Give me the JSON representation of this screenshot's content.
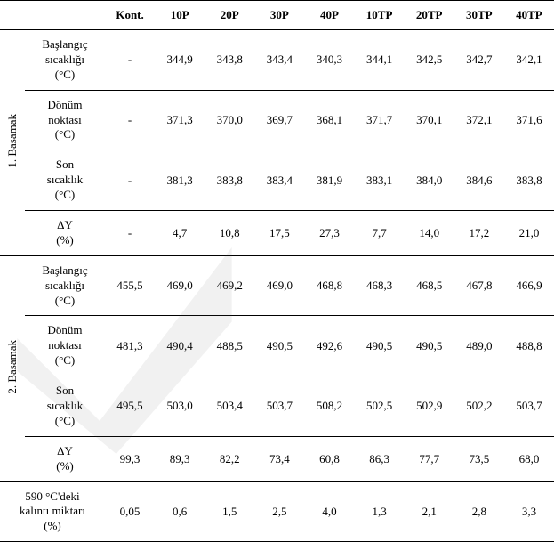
{
  "columns": [
    "Kont.",
    "10P",
    "20P",
    "30P",
    "40P",
    "10TP",
    "20TP",
    "30TP",
    "40TP"
  ],
  "groups": [
    {
      "label": "1.   Basamak",
      "rows": [
        {
          "label": "Başlangıç\nsıcaklığı\n(°C)",
          "values": [
            "-",
            "344,9",
            "343,8",
            "343,4",
            "340,3",
            "344,1",
            "342,5",
            "342,7",
            "342,1"
          ]
        },
        {
          "label": "Dönüm\nnoktası\n(°C)",
          "values": [
            "-",
            "371,3",
            "370,0",
            "369,7",
            "368,1",
            "371,7",
            "370,1",
            "372,1",
            "371,6"
          ]
        },
        {
          "label": "Son\nsıcaklık\n(°C)",
          "values": [
            "-",
            "381,3",
            "383,8",
            "383,4",
            "381,9",
            "383,1",
            "384,0",
            "384,6",
            "383,8"
          ]
        },
        {
          "label": "ΔY\n(%)",
          "values": [
            "-",
            "4,7",
            "10,8",
            "17,5",
            "27,3",
            "7,7",
            "14,0",
            "17,2",
            "21,0"
          ]
        }
      ]
    },
    {
      "label": "2.   Basamak",
      "rows": [
        {
          "label": "Başlangıç\nsıcaklığı\n(°C)",
          "values": [
            "455,5",
            "469,0",
            "469,2",
            "469,0",
            "468,8",
            "468,3",
            "468,5",
            "467,8",
            "466,9"
          ]
        },
        {
          "label": "Dönüm\nnoktası\n(°C)",
          "values": [
            "481,3",
            "490,4",
            "488,5",
            "490,5",
            "492,6",
            "490,5",
            "490,5",
            "489,0",
            "488,8"
          ]
        },
        {
          "label": "Son\nsıcaklık\n(°C)",
          "values": [
            "495,5",
            "503,0",
            "503,4",
            "503,7",
            "508,2",
            "502,5",
            "502,9",
            "502,2",
            "503,7"
          ]
        },
        {
          "label": "ΔY\n(%)",
          "values": [
            "99,3",
            "89,3",
            "82,2",
            "73,4",
            "60,8",
            "86,3",
            "77,7",
            "73,5",
            "68,0"
          ]
        }
      ]
    }
  ],
  "footer": {
    "label": "590 °C'deki\nkalıntı miktarı\n(%)",
    "values": [
      "0,05",
      "0,6",
      "1,5",
      "2,5",
      "4,0",
      "1,3",
      "2,1",
      "2,8",
      "3,3"
    ]
  }
}
